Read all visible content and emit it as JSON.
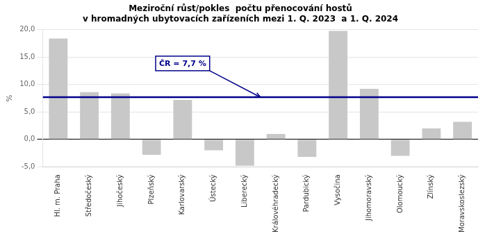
{
  "chart_data": {
    "type": "bar",
    "title": "Meziroční růst/pokles  počtu přenocování hostů\nv hromadných ubytovacích zařízeních mezi 1. Q. 2023  a 1. Q. 2024",
    "categories": [
      "Hl. m. Praha",
      "Středočeský",
      "Jihočeský",
      "Plzeňský",
      "Karlovarský",
      "Ústecký",
      "Liberecký",
      "Královéhradecký",
      "Pardubický",
      "Vysočina",
      "Jihomoravský",
      "Olomoucký",
      "Zlínský",
      "Moravskoslezský"
    ],
    "values": [
      18.4,
      8.6,
      8.4,
      -2.8,
      7.2,
      -2.0,
      -4.8,
      1.0,
      -3.2,
      19.8,
      9.2,
      -3.0,
      2.0,
      3.2
    ],
    "color": "#c8c8c8",
    "ylabel": "%",
    "ylim": [
      -5.0,
      20.0
    ],
    "yticks": [
      {
        "value": -5.0,
        "label": "-5,0"
      },
      {
        "value": 0.0,
        "label": "0,0"
      },
      {
        "value": 5.0,
        "label": "5,0"
      },
      {
        "value": 10.0,
        "label": "10,0"
      },
      {
        "value": 15.0,
        "label": "15,0"
      },
      {
        "value": 20.0,
        "label": "20,0"
      }
    ],
    "grid": true,
    "annotations": [
      {
        "text": "ČR = 7,7 %",
        "y": 7.7,
        "color": "#00008B"
      }
    ]
  }
}
